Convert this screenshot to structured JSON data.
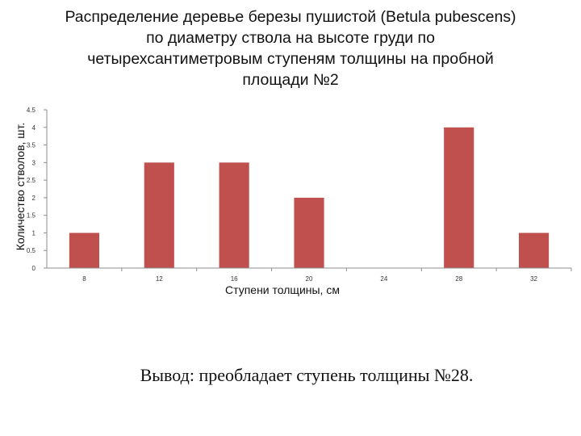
{
  "colors": {
    "bar": "#c0504d",
    "axis": "#8c8c8c"
  },
  "chart_data": {
    "type": "bar",
    "title": "Распределение деревье березы пушистой (Betula pubescens) по диаметру ствола на высоте груди по четырехсантиметровым ступеням толщины на пробной площади №2",
    "xlabel": "Ступени толщины, см",
    "ylabel": "Количество стволов, шт.",
    "categories": [
      "8",
      "12",
      "16",
      "20",
      "24",
      "28",
      "32"
    ],
    "values": [
      1,
      3,
      3,
      2,
      0,
      4,
      1
    ],
    "ylim": [
      0,
      4.5
    ],
    "yticks": [
      "0",
      "0.5",
      "1",
      "1.5",
      "2",
      "2.5",
      "3",
      "3.5",
      "4",
      "4.5"
    ],
    "grid": false,
    "legend": "none"
  },
  "conclusion": "Вывод: преобладает ступень толщины №28."
}
